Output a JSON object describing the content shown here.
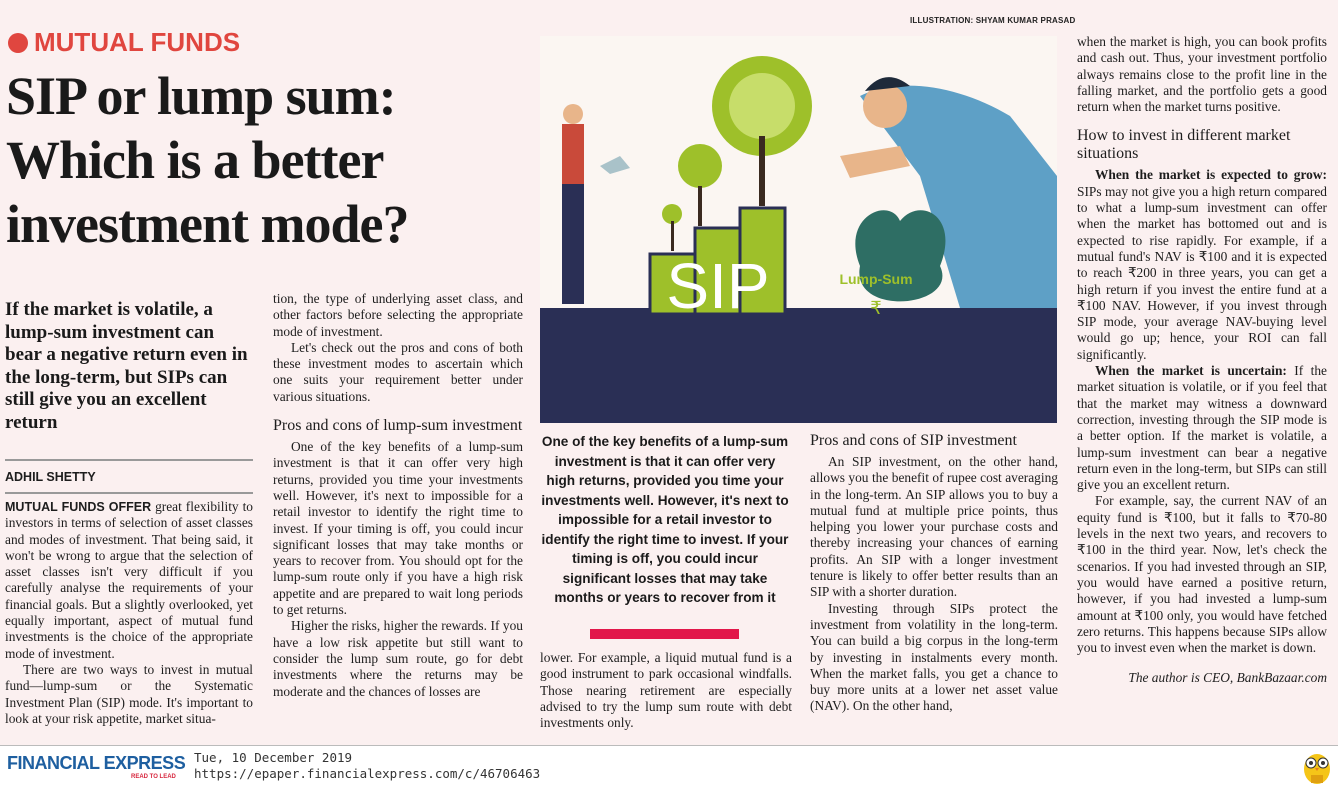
{
  "credit": "ILLUSTRATION: SHYAM KUMAR PRASAD",
  "kicker": "MUTUAL FUNDS",
  "headline": "SIP or lump sum: Which is a better investment mode?",
  "deck": "If the market is volatile, a lump-sum investment can bear a negative return even in the long-term, but SIPs can still give you an excellent return",
  "byline": "ADHIL SHETTY",
  "col1": {
    "lead": "MUTUAL FUNDS OFFER",
    "p1": " great flexibility to investors in terms of selection of asset classes and modes of investment. That being said, it won't be wrong to argue that the selection of asset classes isn't very difficult if you carefully analyse the requirements of your financial goals. But a slightly overlooked, yet equally important, aspect of mutual fund investments is the choice of the appropriate mode of investment.",
    "p2": "There are two ways to invest in mutual fund—lump-sum or the Systematic Investment Plan (SIP) mode. It's important to look at your risk appetite, market situa-"
  },
  "col2": {
    "p1": "tion, the type of underlying asset class, and other factors before selecting the appropriate mode of investment.",
    "p2": "Let's check out the pros and cons of both these investment modes to ascertain which one suits your requirement better under various situations.",
    "sub": "Pros and cons of lump-sum investment",
    "p3": "One of the key benefits of a lump-sum investment is that it can offer very high returns, provided you time your investments well. However, it's next to impossible for a retail investor to identify the right time to invest. If your timing is off, you could incur significant losses that may take months or years to recover from. You should opt for the lump-sum route only if you have a high risk appetite and are prepared to wait long periods to get returns.",
    "p4": "Higher the risks, higher the rewards. If you have a low risk appetite but still want to consider the lump sum route, go for debt investments where the returns may be moderate and the chances of losses are"
  },
  "pullquote": "One of the key benefits of a lump-sum investment is that it can offer very high returns, provided you time your investments well. However, it's next to impossible for a retail investor to identify the right time to invest. If your timing is off, you could incur significant losses that may take months or years to recover from it",
  "col3": {
    "p1": "lower. For example, a liquid mutual fund is a good instrument to park occasional windfalls. Those nearing retirement are especially advised to try the lump sum route with debt investments only."
  },
  "col4": {
    "sub": "Pros and cons of SIP investment",
    "p1": "An SIP investment, on the other hand, allows you the benefit of rupee cost averaging in the long-term. An SIP allows you to buy a mutual fund at multiple price points, thus helping you lower your purchase costs and thereby increasing your chances of earning profits. An SIP with a longer investment tenure is likely to offer better results than an SIP with a shorter duration.",
    "p2": "Investing through SIPs protect the investment from volatility in the long-term. You can build a big corpus in the long-term by investing in instalments every month. When the market falls, you get a chance to buy more units at a lower net asset value (NAV). On the other hand,"
  },
  "col5": {
    "p1": "when the market is high, you can book profits and cash out. Thus, your investment portfolio always remains close to the profit line in the falling market, and the portfolio gets a good return when the market turns positive.",
    "sub": "How to invest in different market situations",
    "b1": "When the market is expected to grow:",
    "p2": " SIPs may not give you a high return compared to what a lump-sum investment can offer when the market has bottomed out and is expected to rise rapidly. For example, if a mutual fund's NAV is ₹100 and it is expected to reach ₹200 in three years, you can get a high return if you invest the entire fund at a ₹100 NAV. However, if you invest through SIP mode, your average NAV-buying level would go up; hence, your ROI can fall significantly.",
    "b2": "When the market is uncertain:",
    "p3": " If the market situation is volatile, or if you feel that that the market may witness a downward correction, investing through the SIP mode is a better option. If the market is volatile, a lump-sum investment can bear a negative return even in the long-term, but SIPs can still give you an excellent return.",
    "p4": "For example, say, the current NAV of an equity fund is ₹100, but it falls to ₹70-80 levels in the next two years, and recovers to ₹100 in the third year. Now, let's check the scenarios. If you had invested through an SIP, you would have earned a positive return, however, if you had invested a lump-sum amount at ₹100 only, you would have fetched zero returns. This happens because SIPs allow you to invest even when the market is down.",
    "sig": "The author is CEO, BankBazaar.com"
  },
  "illustration": {
    "bars_text": "SIP",
    "bag_text": "Lump-Sum",
    "bag_symbol": "₹"
  },
  "footer": {
    "brand": "FINANCIAL EXPRESS",
    "tagline": "READ TO LEAD",
    "date": "Tue, 10 December 2019",
    "url": "https://epaper.financialexpress.com/c/46706463"
  },
  "colors": {
    "kicker": "#e0463f",
    "bar": "#e2174a",
    "navy": "#2a2f55",
    "green": "#9ec02a"
  }
}
